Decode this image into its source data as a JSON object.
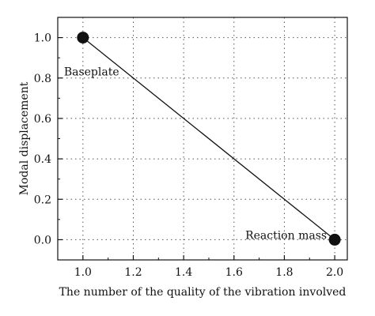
{
  "chart_data": {
    "type": "line",
    "title": "",
    "xlabel": "The number of the quality of the vibration involved",
    "ylabel": "Modal displacement",
    "xlim": [
      0.9,
      2.05
    ],
    "ylim": [
      -0.1,
      1.1
    ],
    "x_ticks": [
      1.0,
      1.2,
      1.4,
      1.6,
      1.8,
      2.0
    ],
    "x_tick_labels": [
      "1.0",
      "1.2",
      "1.4",
      "1.6",
      "1.8",
      "2.0"
    ],
    "y_ticks": [
      0.0,
      0.2,
      0.4,
      0.6,
      0.8,
      1.0
    ],
    "y_tick_labels": [
      "0.0",
      "0.2",
      "0.4",
      "0.6",
      "0.8",
      "1.0"
    ],
    "grid": true,
    "series": [
      {
        "x": [
          1.0,
          2.0
        ],
        "y": [
          1.0,
          0.0
        ],
        "color": "#111111"
      }
    ],
    "annotations": [
      {
        "text": "Baseplate",
        "x": 1.0,
        "y": 1.0
      },
      {
        "text": "Reaction mass",
        "x": 2.0,
        "y": 0.0
      }
    ]
  }
}
